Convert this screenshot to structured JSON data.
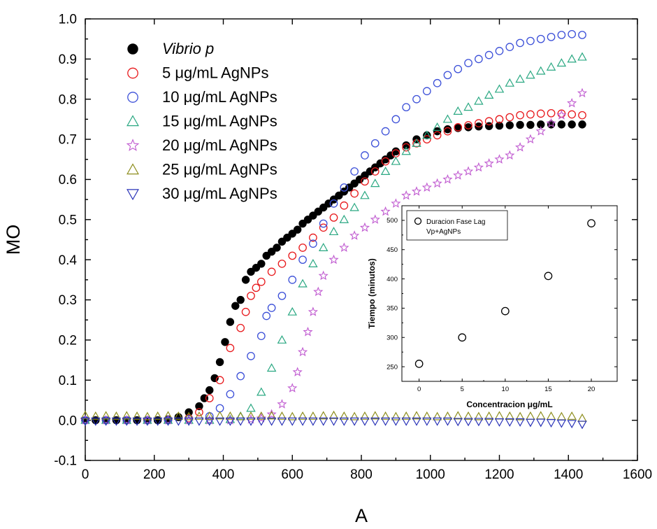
{
  "chart_data": [
    {
      "type": "scatter",
      "title": "",
      "xlabel": "A",
      "ylabel": "MO",
      "xlim": [
        0,
        1600
      ],
      "ylim": [
        -0.1,
        1.0
      ],
      "xticks": [
        "0",
        "200",
        "400",
        "600",
        "800",
        "1000",
        "1200",
        "1400",
        "1600"
      ],
      "yticks": [
        "-0.1",
        "0.0",
        "0.1",
        "0.2",
        "0.3",
        "0.4",
        "0.5",
        "0.6",
        "0.7",
        "0.8",
        "0.9",
        "1.0"
      ],
      "legend_position": "top-left",
      "series": [
        {
          "name": "Vibrio p",
          "italic": true,
          "marker": "filled-circle",
          "color": "#000000",
          "x": [
            0,
            30,
            60,
            90,
            120,
            150,
            180,
            210,
            240,
            270,
            300,
            330,
            345,
            360,
            375,
            390,
            405,
            420,
            435,
            450,
            465,
            480,
            495,
            510,
            525,
            540,
            555,
            570,
            585,
            600,
            615,
            630,
            645,
            660,
            675,
            690,
            705,
            720,
            735,
            750,
            765,
            780,
            795,
            810,
            825,
            840,
            855,
            870,
            885,
            900,
            930,
            960,
            990,
            1020,
            1050,
            1080,
            1110,
            1140,
            1170,
            1200,
            1230,
            1260,
            1290,
            1320,
            1350,
            1380,
            1410,
            1440
          ],
          "y": [
            0,
            0,
            0,
            0,
            0,
            0,
            0,
            0,
            0.002,
            0.008,
            0.02,
            0.035,
            0.055,
            0.075,
            0.105,
            0.145,
            0.195,
            0.245,
            0.285,
            0.3,
            0.35,
            0.37,
            0.38,
            0.39,
            0.41,
            0.42,
            0.43,
            0.445,
            0.455,
            0.465,
            0.475,
            0.49,
            0.5,
            0.51,
            0.52,
            0.53,
            0.54,
            0.55,
            0.56,
            0.57,
            0.58,
            0.59,
            0.6,
            0.61,
            0.62,
            0.63,
            0.64,
            0.65,
            0.66,
            0.67,
            0.685,
            0.7,
            0.71,
            0.72,
            0.725,
            0.728,
            0.73,
            0.732,
            0.733,
            0.734,
            0.735,
            0.736,
            0.736,
            0.737,
            0.737,
            0.737,
            0.737,
            0.737
          ]
        },
        {
          "name": "5 μg/mL AgNPs",
          "marker": "open-circle",
          "color": "#e8191c",
          "x": [
            0,
            60,
            120,
            180,
            240,
            300,
            330,
            360,
            390,
            420,
            450,
            465,
            480,
            495,
            510,
            540,
            570,
            600,
            630,
            660,
            690,
            720,
            750,
            780,
            810,
            840,
            870,
            900,
            930,
            960,
            990,
            1020,
            1050,
            1080,
            1110,
            1140,
            1170,
            1200,
            1230,
            1260,
            1290,
            1320,
            1350,
            1380,
            1410,
            1440
          ],
          "y": [
            0,
            0,
            0,
            0,
            0,
            0.005,
            0.02,
            0.055,
            0.1,
            0.18,
            0.23,
            0.27,
            0.31,
            0.33,
            0.345,
            0.37,
            0.39,
            0.41,
            0.43,
            0.455,
            0.48,
            0.505,
            0.535,
            0.565,
            0.595,
            0.62,
            0.645,
            0.665,
            0.68,
            0.69,
            0.7,
            0.71,
            0.72,
            0.73,
            0.735,
            0.74,
            0.745,
            0.75,
            0.755,
            0.76,
            0.762,
            0.764,
            0.765,
            0.764,
            0.762,
            0.76
          ]
        },
        {
          "name": "10 μg/mL AgNPs",
          "marker": "open-circle",
          "color": "#3b4fd8",
          "x": [
            0,
            60,
            120,
            180,
            240,
            300,
            360,
            390,
            420,
            450,
            480,
            510,
            525,
            540,
            570,
            600,
            630,
            660,
            690,
            720,
            750,
            780,
            810,
            840,
            870,
            900,
            930,
            960,
            990,
            1020,
            1050,
            1080,
            1110,
            1140,
            1170,
            1200,
            1230,
            1260,
            1290,
            1320,
            1350,
            1380,
            1410,
            1440
          ],
          "y": [
            0,
            0,
            0,
            0,
            0,
            0.003,
            0.01,
            0.03,
            0.065,
            0.11,
            0.16,
            0.21,
            0.26,
            0.28,
            0.31,
            0.35,
            0.4,
            0.44,
            0.49,
            0.54,
            0.58,
            0.62,
            0.66,
            0.69,
            0.72,
            0.75,
            0.78,
            0.8,
            0.82,
            0.84,
            0.86,
            0.875,
            0.89,
            0.9,
            0.91,
            0.92,
            0.93,
            0.94,
            0.945,
            0.95,
            0.955,
            0.96,
            0.962,
            0.96
          ]
        },
        {
          "name": "15 μg/mL AgNPs",
          "marker": "open-triangle",
          "color": "#2aa882",
          "x": [
            0,
            60,
            120,
            180,
            240,
            300,
            360,
            420,
            450,
            480,
            510,
            540,
            570,
            600,
            630,
            660,
            690,
            720,
            750,
            780,
            810,
            840,
            870,
            900,
            930,
            960,
            990,
            1020,
            1050,
            1080,
            1110,
            1140,
            1170,
            1200,
            1230,
            1260,
            1290,
            1320,
            1350,
            1380,
            1410,
            1440
          ],
          "y": [
            0,
            0,
            0,
            0,
            0,
            0,
            0,
            0.002,
            0.01,
            0.03,
            0.07,
            0.13,
            0.2,
            0.27,
            0.34,
            0.39,
            0.43,
            0.47,
            0.5,
            0.53,
            0.56,
            0.59,
            0.62,
            0.645,
            0.67,
            0.69,
            0.71,
            0.73,
            0.75,
            0.77,
            0.78,
            0.795,
            0.81,
            0.825,
            0.84,
            0.85,
            0.86,
            0.87,
            0.88,
            0.89,
            0.9,
            0.905
          ]
        },
        {
          "name": "20 μg/mL AgNPs",
          "marker": "open-star",
          "color": "#c05ad0",
          "x": [
            0,
            60,
            120,
            180,
            240,
            300,
            360,
            420,
            480,
            510,
            540,
            570,
            600,
            615,
            630,
            645,
            660,
            675,
            690,
            720,
            750,
            780,
            810,
            840,
            870,
            900,
            930,
            960,
            990,
            1020,
            1050,
            1080,
            1110,
            1140,
            1170,
            1200,
            1230,
            1260,
            1290,
            1320,
            1350,
            1380,
            1410,
            1440
          ],
          "y": [
            0,
            0,
            0,
            0,
            0,
            0,
            0,
            0,
            0.002,
            0.005,
            0.015,
            0.04,
            0.08,
            0.12,
            0.17,
            0.22,
            0.27,
            0.32,
            0.36,
            0.4,
            0.43,
            0.46,
            0.48,
            0.5,
            0.52,
            0.54,
            0.56,
            0.57,
            0.58,
            0.59,
            0.6,
            0.61,
            0.62,
            0.63,
            0.64,
            0.65,
            0.66,
            0.68,
            0.7,
            0.72,
            0.74,
            0.76,
            0.79,
            0.815
          ]
        },
        {
          "name": "25 μg/mL AgNPs",
          "marker": "open-triangle",
          "color": "#8e8e1e",
          "x": [
            0,
            30,
            60,
            90,
            120,
            150,
            180,
            210,
            240,
            270,
            300,
            330,
            360,
            390,
            420,
            450,
            480,
            510,
            540,
            570,
            600,
            630,
            660,
            690,
            720,
            750,
            780,
            810,
            840,
            870,
            900,
            930,
            960,
            990,
            1020,
            1050,
            1080,
            1110,
            1140,
            1170,
            1200,
            1230,
            1260,
            1290,
            1320,
            1350,
            1380,
            1410,
            1440
          ],
          "y": [
            0.012,
            0.01,
            0.011,
            0.01,
            0.011,
            0.01,
            0.009,
            0.01,
            0.011,
            0.01,
            0.009,
            0.01,
            0.01,
            0.011,
            0.01,
            0.009,
            0.01,
            0.01,
            0.011,
            0.01,
            0.009,
            0.01,
            0.01,
            0.011,
            0.012,
            0.01,
            0.009,
            0.01,
            0.011,
            0.01,
            0.009,
            0.01,
            0.011,
            0.01,
            0.009,
            0.01,
            0.011,
            0.01,
            0.009,
            0.01,
            0.011,
            0.01,
            0.009,
            0.01,
            0.011,
            0.01,
            0.009,
            0.01,
            0.005
          ]
        },
        {
          "name": "30 μg/mL AgNPs",
          "marker": "open-triangle-down",
          "color": "#2a33b8",
          "x": [
            0,
            30,
            60,
            90,
            120,
            150,
            180,
            210,
            240,
            270,
            300,
            330,
            360,
            390,
            420,
            450,
            480,
            510,
            540,
            570,
            600,
            630,
            660,
            690,
            720,
            750,
            780,
            810,
            840,
            870,
            900,
            930,
            960,
            990,
            1020,
            1050,
            1080,
            1110,
            1140,
            1170,
            1200,
            1230,
            1260,
            1290,
            1320,
            1350,
            1380,
            1410,
            1440
          ],
          "y": [
            -0.002,
            -0.002,
            -0.002,
            -0.002,
            -0.002,
            -0.002,
            -0.002,
            -0.002,
            -0.002,
            -0.002,
            -0.002,
            -0.002,
            -0.002,
            -0.002,
            -0.002,
            -0.002,
            -0.002,
            -0.002,
            -0.002,
            -0.002,
            -0.002,
            -0.002,
            -0.002,
            -0.002,
            -0.002,
            -0.002,
            -0.002,
            -0.002,
            -0.002,
            -0.002,
            -0.002,
            -0.002,
            -0.002,
            -0.002,
            -0.002,
            -0.002,
            -0.003,
            -0.003,
            -0.003,
            -0.003,
            -0.004,
            -0.004,
            -0.004,
            -0.005,
            -0.005,
            -0.006,
            -0.007,
            -0.008,
            -0.01
          ]
        }
      ]
    },
    {
      "type": "scatter",
      "title": "",
      "xlabel": "Concentracion μg/mL",
      "ylabel": "Tiempo (minutos)",
      "xlim": [
        -2,
        23
      ],
      "ylim": [
        225,
        525
      ],
      "xticks": [
        "0",
        "5",
        "10",
        "15",
        "20"
      ],
      "yticks": [
        "250",
        "300",
        "350",
        "400",
        "450",
        "500"
      ],
      "legend_position": "top-left",
      "legend_lines": [
        "Duracion Fase Lag",
        "Vp+AgNPs"
      ],
      "series": [
        {
          "name": "Duracion Fase Lag",
          "marker": "open-circle",
          "color": "#000000",
          "x": [
            0,
            5,
            10,
            15,
            20
          ],
          "y": [
            255,
            300,
            345,
            405,
            495
          ]
        }
      ]
    }
  ]
}
